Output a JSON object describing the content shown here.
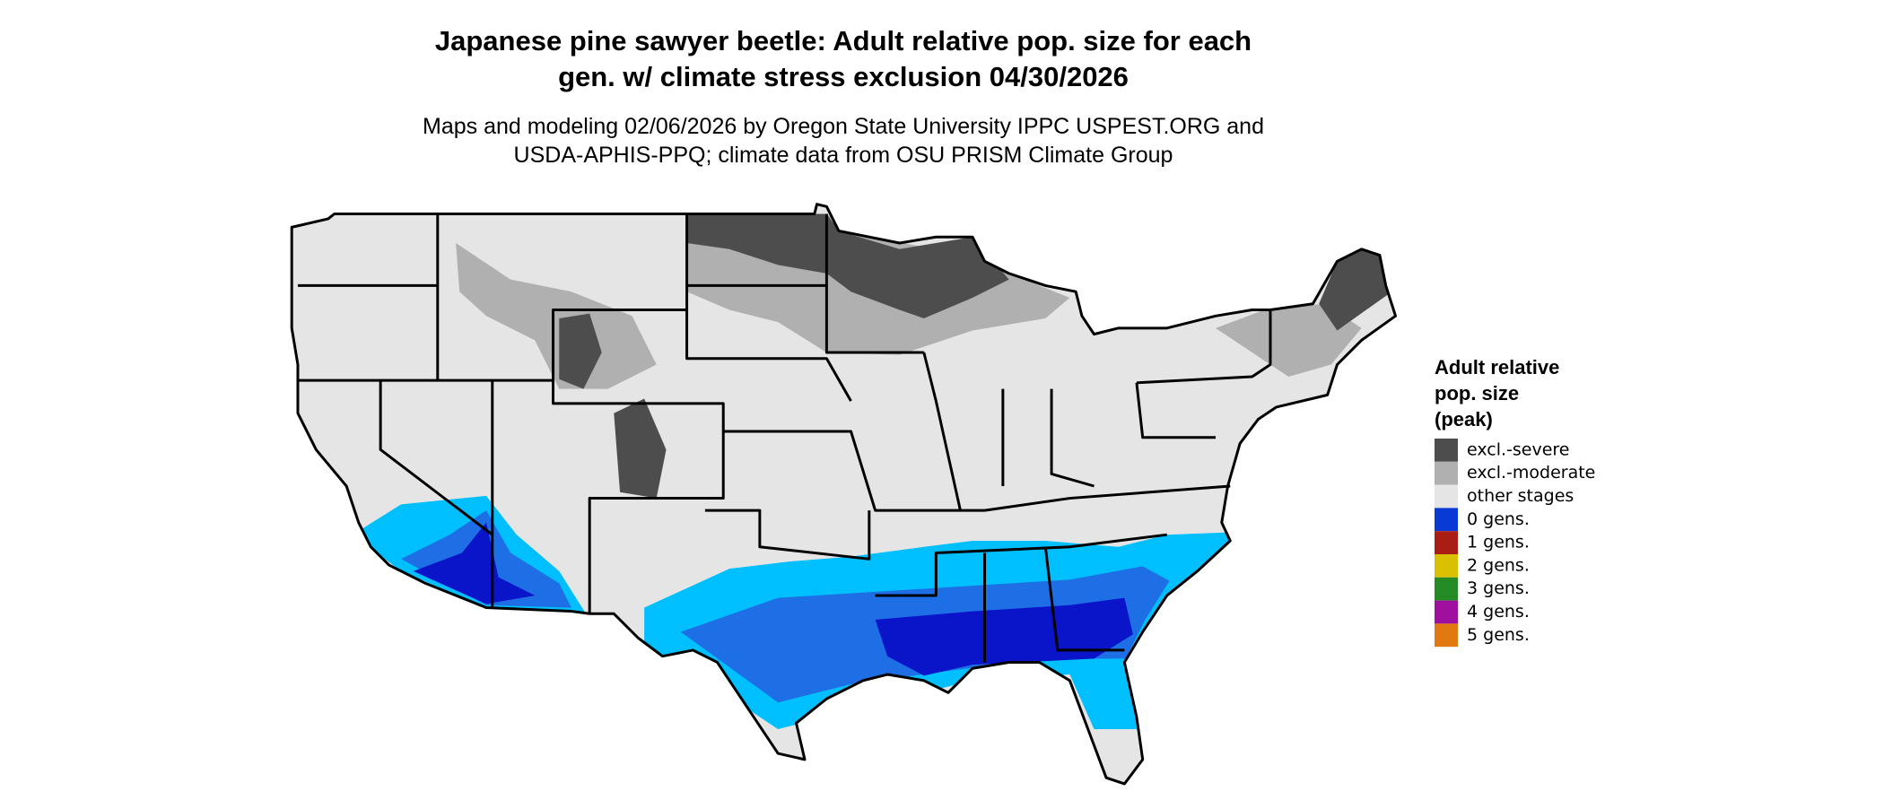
{
  "header": {
    "title": [
      "Japanese pine sawyer beetle: Adult relative pop. size for each",
      "gen. w/ climate stress exclusion 04/30/2026"
    ],
    "subtitle": [
      "Maps and modeling 02/06/2026 by Oregon State University IPPC USPEST.ORG and",
      "USDA-APHIS-PPQ; climate data from OSU PRISM Climate Group"
    ]
  },
  "legend": {
    "title": [
      "Adult relative",
      "pop. size",
      "(peak)"
    ],
    "items": [
      {
        "label": "excl.-severe",
        "color": "#4d4d4d"
      },
      {
        "label": "excl.-moderate",
        "color": "#b0b0b0"
      },
      {
        "label": "other stages",
        "color": "#e5e5e5"
      },
      {
        "label": "0 gens.",
        "color": "#0a3ad6"
      },
      {
        "label": "1 gens.",
        "color": "#a91d14"
      },
      {
        "label": "2 gens.",
        "color": "#d8c000"
      },
      {
        "label": "3 gens.",
        "color": "#238a24"
      },
      {
        "label": "4 gens.",
        "color": "#a0109e"
      },
      {
        "label": "5 gens.",
        "color": "#e07a10"
      }
    ]
  }
}
